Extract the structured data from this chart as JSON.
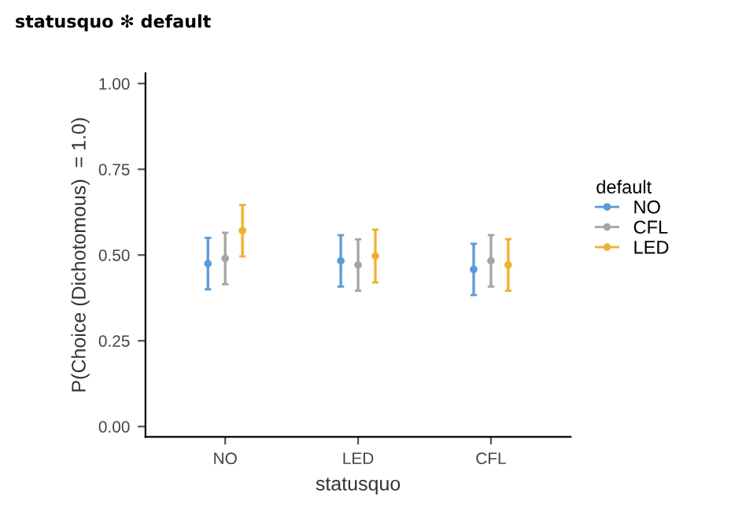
{
  "chart_data": {
    "type": "scatter",
    "title": "statusquo ✻ default",
    "xlabel": "statusquo",
    "ylabel": "P(Choice (Dichotomous)  = 1.0)",
    "legend_title": "default",
    "categories": [
      "NO",
      "LED",
      "CFL"
    ],
    "series": [
      {
        "name": "NO",
        "color": "#5b9bd5",
        "values": [
          0.475,
          0.483,
          0.458
        ],
        "errors": [
          0.075,
          0.075,
          0.075
        ]
      },
      {
        "name": "CFL",
        "color": "#a5a5a5",
        "values": [
          0.49,
          0.471,
          0.483
        ],
        "errors": [
          0.075,
          0.075,
          0.075
        ]
      },
      {
        "name": "LED",
        "color": "#f0b030",
        "values": [
          0.571,
          0.497,
          0.471
        ],
        "errors": [
          0.075,
          0.077,
          0.075
        ]
      }
    ],
    "ylim": [
      -0.03,
      1.03
    ],
    "yticks": [
      {
        "value": 0,
        "label": "0.00"
      },
      {
        "value": 0.25,
        "label": "0.25"
      },
      {
        "value": 0.5,
        "label": "0.50"
      },
      {
        "value": 0.75,
        "label": "0.75"
      },
      {
        "value": 1,
        "label": "1.00"
      }
    ],
    "marker": "circle",
    "legend": "right",
    "grid": false
  }
}
